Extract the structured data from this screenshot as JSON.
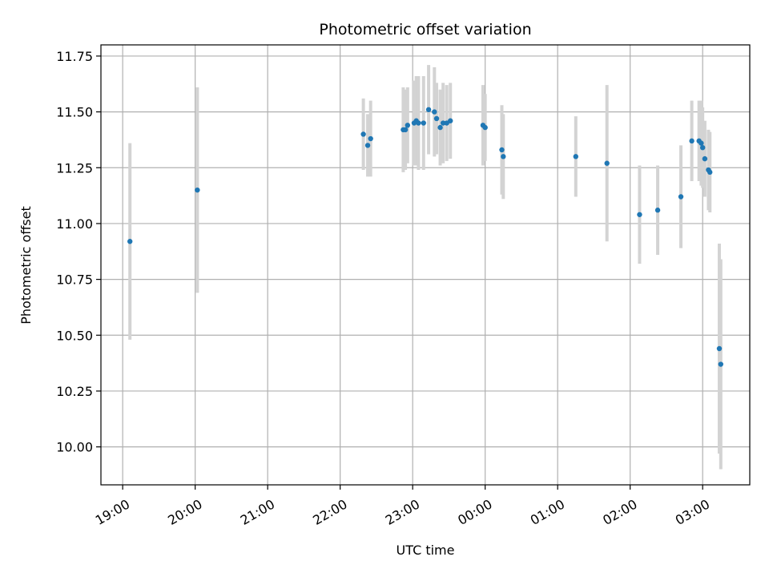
{
  "chart_data": {
    "type": "scatter",
    "title": "Photometric offset variation",
    "xlabel": "UTC time",
    "ylabel": "Photometric offset",
    "grid": true,
    "x_unit": "hours of UTC time (values past 24 fall after midnight)",
    "xlim": [
      18.7,
      27.65
    ],
    "ylim": [
      9.83,
      11.8
    ],
    "x_ticks": [
      {
        "value": 19,
        "label": "19:00"
      },
      {
        "value": 20,
        "label": "20:00"
      },
      {
        "value": 21,
        "label": "21:00"
      },
      {
        "value": 22,
        "label": "22:00"
      },
      {
        "value": 23,
        "label": "23:00"
      },
      {
        "value": 24,
        "label": "00:00"
      },
      {
        "value": 25,
        "label": "01:00"
      },
      {
        "value": 26,
        "label": "02:00"
      },
      {
        "value": 27,
        "label": "03:00"
      }
    ],
    "y_ticks": [
      {
        "value": 10.0,
        "label": "10.00"
      },
      {
        "value": 10.25,
        "label": "10.25"
      },
      {
        "value": 10.5,
        "label": "10.50"
      },
      {
        "value": 10.75,
        "label": "10.75"
      },
      {
        "value": 11.0,
        "label": "11.00"
      },
      {
        "value": 11.25,
        "label": "11.25"
      },
      {
        "value": 11.5,
        "label": "11.50"
      },
      {
        "value": 11.75,
        "label": "11.75"
      }
    ],
    "point_color": "#1f77b4",
    "errorbar_color": "#d3d3d3",
    "points": [
      {
        "x": 19.1,
        "y": 10.92,
        "err": 0.44
      },
      {
        "x": 20.03,
        "y": 11.15,
        "err": 0.46
      },
      {
        "x": 22.32,
        "y": 11.4,
        "err": 0.16
      },
      {
        "x": 22.38,
        "y": 11.35,
        "err": 0.14
      },
      {
        "x": 22.42,
        "y": 11.38,
        "err": 0.17
      },
      {
        "x": 22.87,
        "y": 11.42,
        "err": 0.19
      },
      {
        "x": 22.9,
        "y": 11.42,
        "err": 0.18
      },
      {
        "x": 22.93,
        "y": 11.44,
        "err": 0.17
      },
      {
        "x": 23.02,
        "y": 11.45,
        "err": 0.19
      },
      {
        "x": 23.05,
        "y": 11.46,
        "err": 0.2
      },
      {
        "x": 23.08,
        "y": 11.45,
        "err": 0.21
      },
      {
        "x": 23.15,
        "y": 11.45,
        "err": 0.21
      },
      {
        "x": 23.22,
        "y": 11.51,
        "err": 0.2
      },
      {
        "x": 23.3,
        "y": 11.5,
        "err": 0.2
      },
      {
        "x": 23.33,
        "y": 11.47,
        "err": 0.16
      },
      {
        "x": 23.38,
        "y": 11.43,
        "err": 0.17
      },
      {
        "x": 23.42,
        "y": 11.45,
        "err": 0.18
      },
      {
        "x": 23.47,
        "y": 11.45,
        "err": 0.17
      },
      {
        "x": 23.52,
        "y": 11.46,
        "err": 0.17
      },
      {
        "x": 23.97,
        "y": 11.44,
        "err": 0.18
      },
      {
        "x": 24.0,
        "y": 11.43,
        "err": 0.15
      },
      {
        "x": 24.23,
        "y": 11.33,
        "err": 0.2
      },
      {
        "x": 24.25,
        "y": 11.3,
        "err": 0.19
      },
      {
        "x": 25.25,
        "y": 11.3,
        "err": 0.18
      },
      {
        "x": 25.68,
        "y": 11.27,
        "err": 0.35
      },
      {
        "x": 26.13,
        "y": 11.04,
        "err": 0.22
      },
      {
        "x": 26.38,
        "y": 11.06,
        "err": 0.2
      },
      {
        "x": 26.7,
        "y": 11.12,
        "err": 0.23
      },
      {
        "x": 26.85,
        "y": 11.37,
        "err": 0.18
      },
      {
        "x": 26.95,
        "y": 11.37,
        "err": 0.18
      },
      {
        "x": 26.98,
        "y": 11.36,
        "err": 0.19
      },
      {
        "x": 27.0,
        "y": 11.34,
        "err": 0.18
      },
      {
        "x": 27.03,
        "y": 11.29,
        "err": 0.17
      },
      {
        "x": 27.08,
        "y": 11.24,
        "err": 0.18
      },
      {
        "x": 27.1,
        "y": 11.23,
        "err": 0.18
      },
      {
        "x": 27.23,
        "y": 10.44,
        "err": 0.47
      },
      {
        "x": 27.25,
        "y": 10.37,
        "err": 0.47
      }
    ]
  }
}
